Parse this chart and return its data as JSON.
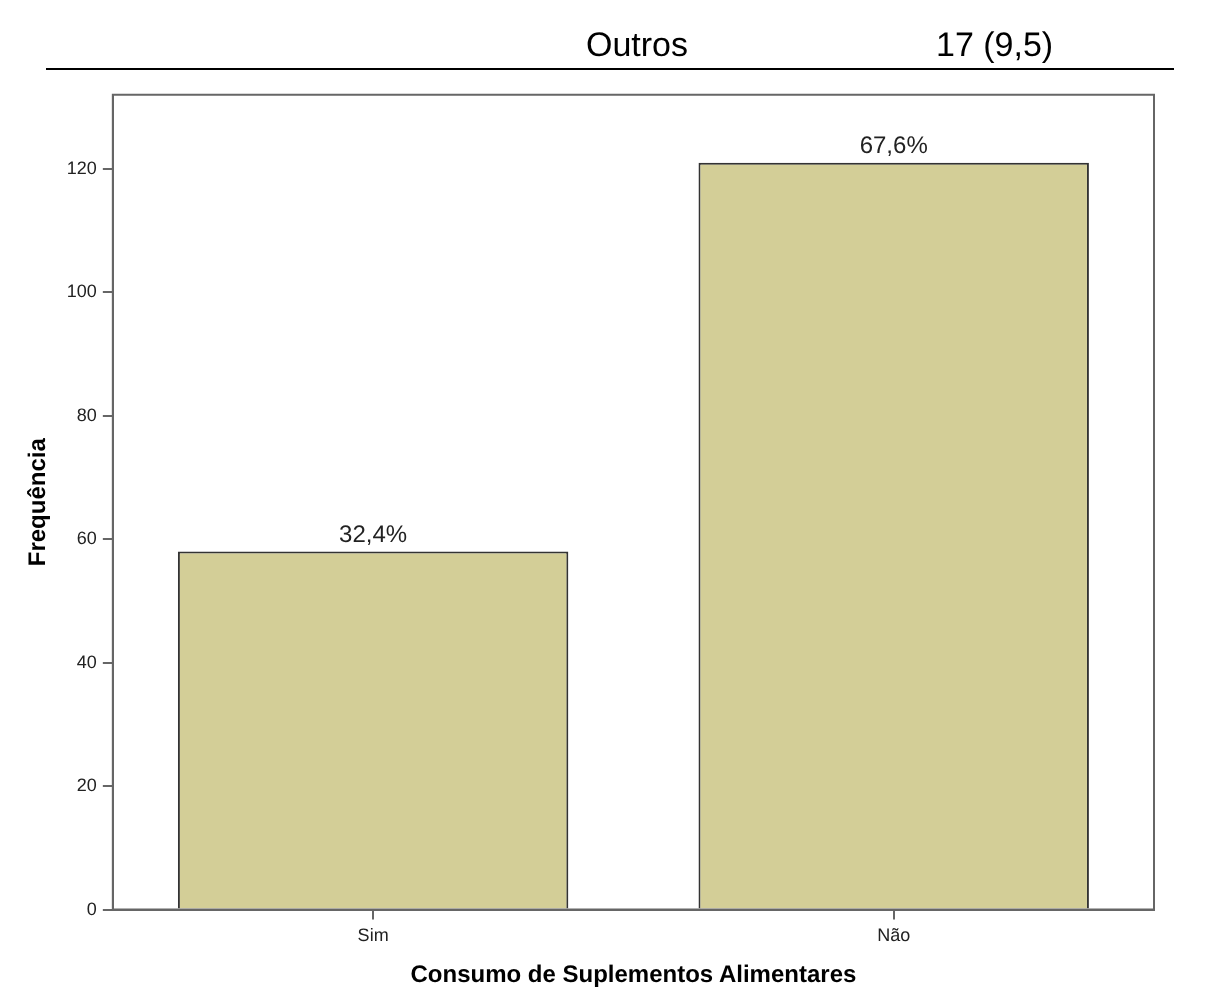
{
  "chart_data": {
    "type": "bar",
    "xlabel": "Consumo de Suplementos Alimentares",
    "ylabel": "Frequência",
    "annotations": [
      "Outros",
      "17 (9,5)",
      {
        "text": "32,4%",
        "x": "Sim",
        "y": 58
      },
      {
        "text": "67,6%",
        "x": "Não",
        "y": 121
      }
    ],
    "categories": [
      "Sim",
      "Não"
    ],
    "values": [
      58,
      121
    ],
    "color": "#d3ce97",
    "ylim": [
      0,
      132
    ],
    "yticks": [
      0,
      20,
      40,
      60,
      80,
      100,
      120
    ],
    "grid": false,
    "legend": false
  }
}
